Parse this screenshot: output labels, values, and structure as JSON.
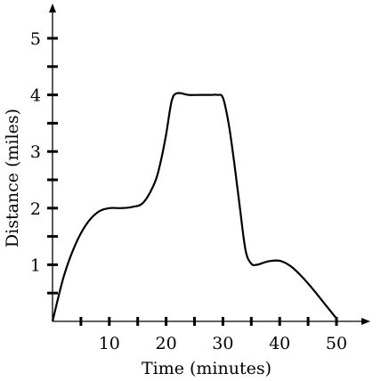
{
  "chart_data": {
    "type": "line",
    "title": "",
    "xlabel": "Time (minutes)",
    "ylabel": "Distance (miles)",
    "xlim": [
      0,
      50
    ],
    "ylim": [
      0,
      5
    ],
    "x_tick_labels": [
      "10",
      "20",
      "30",
      "40",
      "50"
    ],
    "y_tick_labels": [
      "1",
      "2",
      "3",
      "4",
      "5"
    ],
    "x_ticks": [
      5,
      10,
      15,
      20,
      25,
      30,
      35,
      40,
      45,
      50
    ],
    "y_ticks": [
      0.5,
      1,
      1.5,
      2,
      2.5,
      3,
      3.5,
      4,
      4.5,
      5
    ],
    "grid": false,
    "series": [
      {
        "x": [
          0,
          2,
          4,
          6,
          8,
          10,
          12,
          14,
          16,
          18,
          19,
          20,
          21,
          22,
          24,
          26,
          28,
          29,
          30,
          31,
          32,
          33,
          34,
          35,
          36,
          38,
          40,
          42,
          44,
          46,
          48,
          50
        ],
        "y": [
          0,
          0.8,
          1.35,
          1.72,
          1.93,
          2.0,
          2.0,
          2.02,
          2.1,
          2.45,
          2.8,
          3.3,
          3.9,
          4.03,
          4.0,
          4.0,
          4.0,
          4.0,
          3.95,
          3.5,
          2.8,
          2.0,
          1.25,
          1.02,
          1.0,
          1.06,
          1.07,
          0.97,
          0.78,
          0.55,
          0.3,
          0.05
        ]
      }
    ]
  }
}
